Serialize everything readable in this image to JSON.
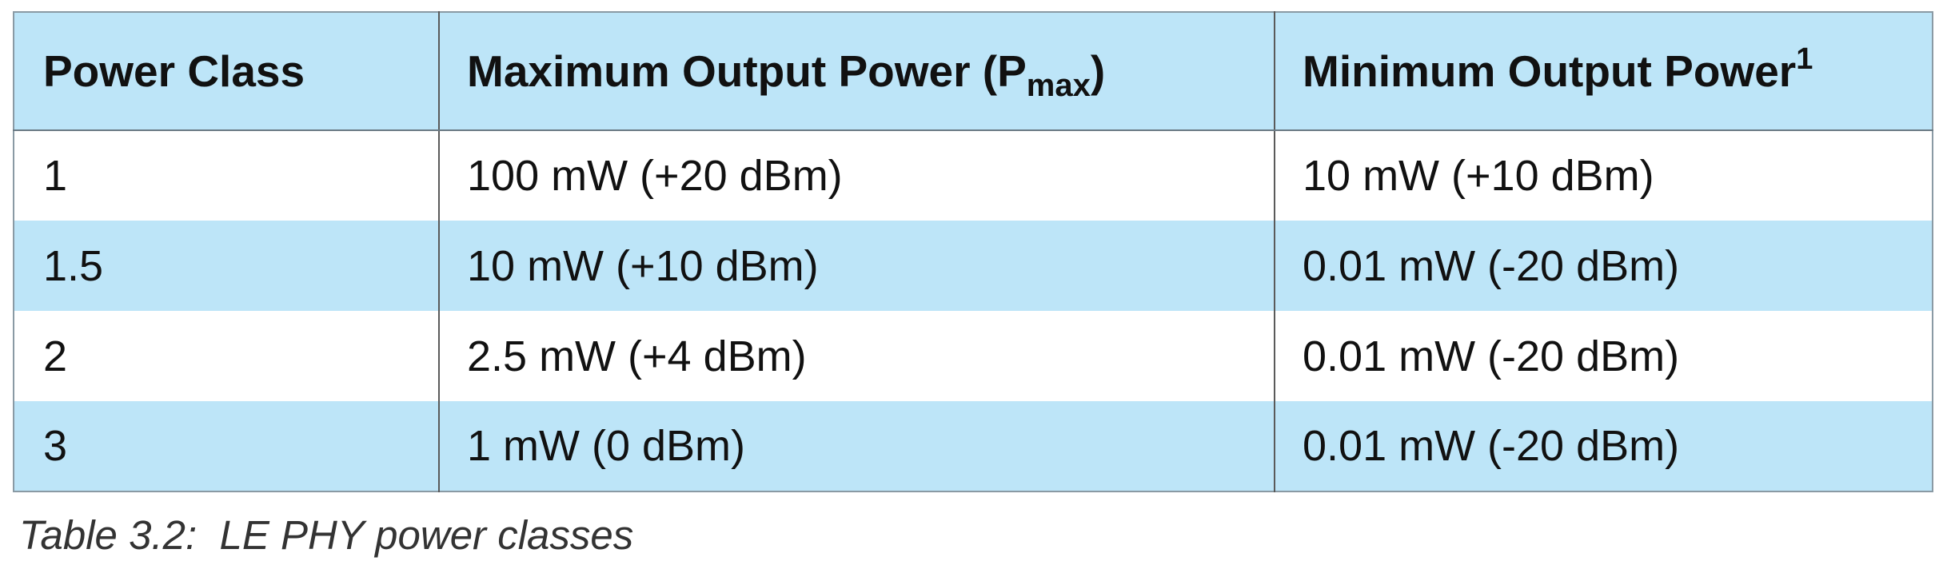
{
  "table": {
    "headers": {
      "power_class": "Power Class",
      "max_output_power": "Maximum Output Power (P",
      "max_output_power_sub": "max",
      "max_output_power_close": ")",
      "min_output_power": "Minimum Output Power",
      "min_output_power_footnote": "1"
    },
    "rows": [
      {
        "power_class": "1",
        "max_output_power": "100 mW (+20 dBm)",
        "min_output_power": "10 mW (+10 dBm)"
      },
      {
        "power_class": "1.5",
        "max_output_power": "10 mW (+10 dBm)",
        "min_output_power": "0.01 mW (-20 dBm)"
      },
      {
        "power_class": "2",
        "max_output_power": "2.5 mW (+4 dBm)",
        "min_output_power": "0.01 mW (-20 dBm)"
      },
      {
        "power_class": "3",
        "max_output_power": "1 mW (0 dBm)",
        "min_output_power": "0.01 mW (-20 dBm)"
      }
    ]
  },
  "caption": "Table 3.2:  LE PHY power classes",
  "colors": {
    "header_bg": "#bde5f8",
    "alt_row_bg": "#bde5f8",
    "plain_row_bg": "#ffffff"
  }
}
